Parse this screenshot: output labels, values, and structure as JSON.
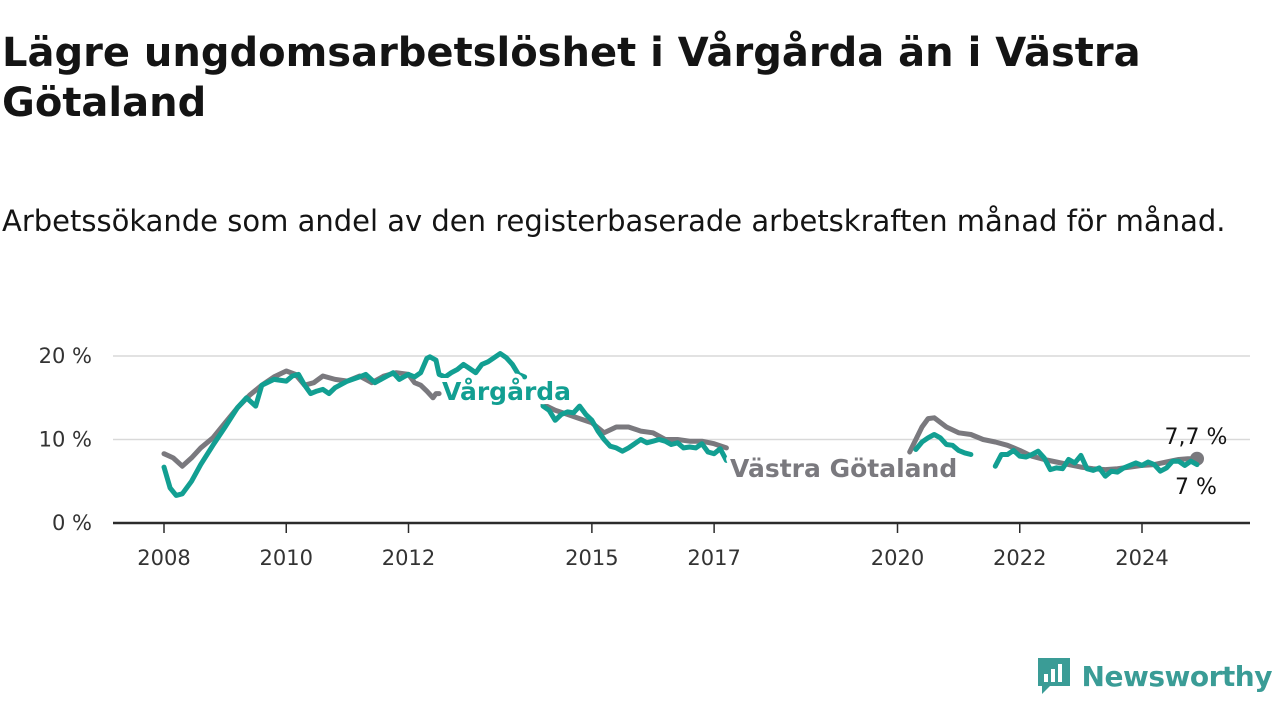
{
  "title": "Lägre ungdomsarbetslöshet i Vårgårda än i Västra Götaland",
  "subtitle": "Arbetssökande som andel av den registerbaserade arbetskraften månad för månad.",
  "brand": {
    "name": "Newsworthy",
    "icon": "newsworthy-logo-icon",
    "color": "#3a9c96"
  },
  "chart_data": {
    "type": "line",
    "x_unit": "year",
    "xlim": [
      2008,
      2025
    ],
    "ylim": [
      0,
      20
    ],
    "y_ticks": [
      0,
      10,
      20
    ],
    "y_tick_labels": [
      "0 %",
      "10 %",
      "20 %"
    ],
    "x_ticks": [
      2008,
      2010,
      2012,
      2015,
      2017,
      2020,
      2022,
      2024
    ],
    "x_tick_labels": [
      "2008",
      "2010",
      "2012",
      "2015",
      "2017",
      "2020",
      "2022",
      "2024"
    ],
    "grid": "horizontal",
    "series": [
      {
        "name": "Västra Götaland",
        "color": "#7a797e",
        "label": "Västra Götaland",
        "end_label": "7,7 %",
        "points": [
          [
            2008.0,
            8.3
          ],
          [
            2008.15,
            7.8
          ],
          [
            2008.3,
            6.8
          ],
          [
            2008.45,
            7.8
          ],
          [
            2008.6,
            9.0
          ],
          [
            2008.8,
            10.2
          ],
          [
            2009.0,
            12.0
          ],
          [
            2009.2,
            13.8
          ],
          [
            2009.4,
            15.3
          ],
          [
            2009.6,
            16.5
          ],
          [
            2009.8,
            17.5
          ],
          [
            2010.0,
            18.2
          ],
          [
            2010.15,
            17.8
          ],
          [
            2010.3,
            16.5
          ],
          [
            2010.45,
            16.8
          ],
          [
            2010.6,
            17.6
          ],
          [
            2010.8,
            17.2
          ],
          [
            2011.0,
            17.0
          ],
          [
            2011.2,
            17.6
          ],
          [
            2011.4,
            16.8
          ],
          [
            2011.6,
            17.6
          ],
          [
            2011.8,
            18.0
          ],
          [
            2012.0,
            17.8
          ],
          [
            2012.1,
            16.8
          ],
          [
            2012.2,
            16.5
          ],
          [
            2012.3,
            15.8
          ],
          [
            2012.4,
            15.0
          ],
          [
            2012.45,
            15.5
          ],
          [
            2012.5,
            15.5
          ],
          null,
          [
            2014.2,
            14.2
          ],
          [
            2014.4,
            13.5
          ],
          [
            2014.6,
            13.0
          ],
          [
            2014.8,
            12.5
          ],
          [
            2015.0,
            12.0
          ],
          [
            2015.2,
            10.8
          ],
          [
            2015.4,
            11.5
          ],
          [
            2015.6,
            11.5
          ],
          [
            2015.8,
            11.0
          ],
          [
            2016.0,
            10.8
          ],
          [
            2016.2,
            10.0
          ],
          [
            2016.4,
            10.0
          ],
          [
            2016.6,
            9.8
          ],
          [
            2016.8,
            9.8
          ],
          [
            2017.0,
            9.5
          ],
          [
            2017.2,
            9.0
          ],
          null,
          [
            2020.2,
            8.5
          ],
          [
            2020.4,
            11.5
          ],
          [
            2020.5,
            12.5
          ],
          [
            2020.6,
            12.6
          ],
          [
            2020.8,
            11.5
          ],
          [
            2021.0,
            10.8
          ],
          [
            2021.2,
            10.6
          ],
          [
            2021.4,
            10.0
          ],
          [
            2021.6,
            9.7
          ],
          [
            2021.8,
            9.3
          ],
          [
            2022.0,
            8.7
          ],
          [
            2022.2,
            8.0
          ],
          [
            2022.4,
            7.6
          ],
          [
            2022.6,
            7.3
          ],
          [
            2022.8,
            7.0
          ],
          [
            2023.0,
            6.7
          ],
          [
            2023.2,
            6.5
          ],
          [
            2023.4,
            6.4
          ],
          [
            2023.6,
            6.5
          ],
          [
            2023.8,
            6.7
          ],
          [
            2024.0,
            6.9
          ],
          [
            2024.2,
            7.0
          ],
          [
            2024.4,
            7.3
          ],
          [
            2024.6,
            7.6
          ],
          [
            2024.75,
            7.7
          ],
          [
            2024.9,
            7.7
          ]
        ]
      },
      {
        "name": "Vårgårda",
        "color": "#129f92",
        "label": "Vårgårda",
        "end_label": "7 %",
        "points": [
          [
            2008.0,
            6.7
          ],
          [
            2008.1,
            4.2
          ],
          [
            2008.2,
            3.3
          ],
          [
            2008.3,
            3.5
          ],
          [
            2008.45,
            5.0
          ],
          [
            2008.6,
            7.0
          ],
          [
            2008.8,
            9.3
          ],
          [
            2009.0,
            11.5
          ],
          [
            2009.2,
            13.8
          ],
          [
            2009.35,
            15.0
          ],
          [
            2009.5,
            14.0
          ],
          [
            2009.6,
            16.5
          ],
          [
            2009.8,
            17.2
          ],
          [
            2010.0,
            17.0
          ],
          [
            2010.1,
            17.6
          ],
          [
            2010.2,
            17.8
          ],
          [
            2010.3,
            16.5
          ],
          [
            2010.4,
            15.5
          ],
          [
            2010.5,
            15.8
          ],
          [
            2010.6,
            16.0
          ],
          [
            2010.7,
            15.5
          ],
          [
            2010.8,
            16.2
          ],
          [
            2011.0,
            17.0
          ],
          [
            2011.2,
            17.5
          ],
          [
            2011.3,
            17.8
          ],
          [
            2011.45,
            16.8
          ],
          [
            2011.6,
            17.4
          ],
          [
            2011.75,
            18.0
          ],
          [
            2011.85,
            17.2
          ],
          [
            2011.95,
            17.6
          ],
          [
            2012.0,
            17.8
          ],
          [
            2012.1,
            17.5
          ],
          [
            2012.2,
            18.0
          ],
          [
            2012.3,
            19.7
          ],
          [
            2012.35,
            19.9
          ],
          [
            2012.45,
            19.5
          ],
          [
            2012.5,
            17.8
          ],
          [
            2012.6,
            17.5
          ],
          [
            2012.7,
            18.0
          ],
          [
            2012.8,
            18.4
          ],
          [
            2012.9,
            19.0
          ],
          [
            2013.0,
            18.5
          ],
          [
            2013.1,
            18.0
          ],
          [
            2013.2,
            19.0
          ],
          [
            2013.3,
            19.3
          ],
          [
            2013.4,
            19.8
          ],
          [
            2013.5,
            20.3
          ],
          [
            2013.6,
            19.8
          ],
          [
            2013.7,
            19.0
          ],
          [
            2013.8,
            17.8
          ],
          [
            2013.9,
            17.5
          ],
          null,
          [
            2014.2,
            14.0
          ],
          [
            2014.3,
            13.5
          ],
          [
            2014.4,
            12.3
          ],
          [
            2014.5,
            13.0
          ],
          [
            2014.6,
            13.3
          ],
          [
            2014.7,
            13.2
          ],
          [
            2014.8,
            14.0
          ],
          [
            2014.9,
            13.0
          ],
          [
            2015.0,
            12.3
          ],
          [
            2015.1,
            11.0
          ],
          [
            2015.2,
            10.0
          ],
          [
            2015.3,
            9.2
          ],
          [
            2015.4,
            9.0
          ],
          [
            2015.5,
            8.6
          ],
          [
            2015.6,
            9.0
          ],
          [
            2015.7,
            9.5
          ],
          [
            2015.8,
            10.0
          ],
          [
            2015.9,
            9.6
          ],
          [
            2016.0,
            9.8
          ],
          [
            2016.1,
            10.0
          ],
          [
            2016.2,
            9.8
          ],
          [
            2016.3,
            9.4
          ],
          [
            2016.4,
            9.6
          ],
          [
            2016.5,
            9.0
          ],
          [
            2016.6,
            9.1
          ],
          [
            2016.7,
            9.0
          ],
          [
            2016.8,
            9.5
          ],
          [
            2016.9,
            8.5
          ],
          [
            2017.0,
            8.3
          ],
          [
            2017.1,
            8.9
          ],
          [
            2017.2,
            7.5
          ],
          [
            2017.3,
            7.6
          ],
          null,
          [
            2020.3,
            8.8
          ],
          [
            2020.4,
            9.7
          ],
          [
            2020.5,
            10.2
          ],
          [
            2020.6,
            10.6
          ],
          [
            2020.7,
            10.2
          ],
          [
            2020.8,
            9.4
          ],
          [
            2020.9,
            9.3
          ],
          [
            2021.0,
            8.7
          ],
          [
            2021.1,
            8.4
          ],
          [
            2021.2,
            8.2
          ],
          null,
          [
            2021.6,
            6.8
          ],
          [
            2021.7,
            8.2
          ],
          [
            2021.8,
            8.2
          ],
          [
            2021.9,
            8.7
          ],
          [
            2022.0,
            8.0
          ],
          [
            2022.1,
            7.9
          ],
          [
            2022.2,
            8.2
          ],
          [
            2022.3,
            8.6
          ],
          [
            2022.4,
            7.8
          ],
          [
            2022.5,
            6.4
          ],
          [
            2022.6,
            6.6
          ],
          [
            2022.7,
            6.5
          ],
          [
            2022.8,
            7.6
          ],
          [
            2022.9,
            7.2
          ],
          [
            2023.0,
            8.1
          ],
          [
            2023.1,
            6.5
          ],
          [
            2023.2,
            6.3
          ],
          [
            2023.3,
            6.6
          ],
          [
            2023.4,
            5.6
          ],
          [
            2023.5,
            6.2
          ],
          [
            2023.6,
            6.1
          ],
          [
            2023.7,
            6.6
          ],
          [
            2023.8,
            6.9
          ],
          [
            2023.9,
            7.2
          ],
          [
            2024.0,
            6.9
          ],
          [
            2024.1,
            7.3
          ],
          [
            2024.2,
            7.0
          ],
          [
            2024.3,
            6.2
          ],
          [
            2024.4,
            6.6
          ],
          [
            2024.5,
            7.4
          ],
          [
            2024.6,
            7.4
          ],
          [
            2024.7,
            6.9
          ],
          [
            2024.8,
            7.4
          ],
          [
            2024.9,
            7.0
          ]
        ]
      }
    ]
  }
}
